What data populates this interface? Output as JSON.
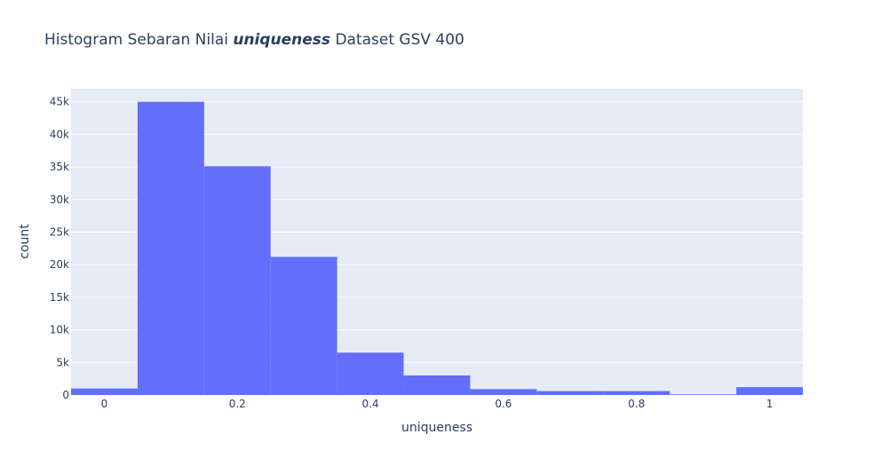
{
  "chart_data": {
    "type": "bar",
    "title": {
      "prefix": "Histogram Sebaran Nilai ",
      "emphasis": "uniqueness",
      "suffix": " Dataset GSV 400"
    },
    "xlabel": "uniqueness",
    "ylabel": "count",
    "xlim": [
      -0.05,
      1.05
    ],
    "ylim": [
      0,
      47000
    ],
    "grid": true,
    "bin_width": 0.1,
    "bins": [
      {
        "x0": -0.05,
        "x1": 0.05,
        "count": 1000
      },
      {
        "x0": 0.05,
        "x1": 0.15,
        "count": 45000
      },
      {
        "x0": 0.15,
        "x1": 0.25,
        "count": 35100
      },
      {
        "x0": 0.25,
        "x1": 0.35,
        "count": 21200
      },
      {
        "x0": 0.35,
        "x1": 0.45,
        "count": 6500
      },
      {
        "x0": 0.45,
        "x1": 0.55,
        "count": 3000
      },
      {
        "x0": 0.55,
        "x1": 0.65,
        "count": 900
      },
      {
        "x0": 0.65,
        "x1": 0.75,
        "count": 600
      },
      {
        "x0": 0.75,
        "x1": 0.85,
        "count": 600
      },
      {
        "x0": 0.85,
        "x1": 0.95,
        "count": 100
      },
      {
        "x0": 0.95,
        "x1": 1.05,
        "count": 1200
      }
    ],
    "x_ticks": [
      {
        "value": 0,
        "label": "0"
      },
      {
        "value": 0.2,
        "label": "0.2"
      },
      {
        "value": 0.4,
        "label": "0.4"
      },
      {
        "value": 0.6,
        "label": "0.6"
      },
      {
        "value": 0.8,
        "label": "0.8"
      },
      {
        "value": 1,
        "label": "1"
      }
    ],
    "y_ticks": [
      {
        "value": 0,
        "label": "0"
      },
      {
        "value": 5000,
        "label": "5k"
      },
      {
        "value": 10000,
        "label": "10k"
      },
      {
        "value": 15000,
        "label": "15k"
      },
      {
        "value": 20000,
        "label": "20k"
      },
      {
        "value": 25000,
        "label": "25k"
      },
      {
        "value": 30000,
        "label": "30k"
      },
      {
        "value": 35000,
        "label": "35k"
      },
      {
        "value": 40000,
        "label": "40k"
      },
      {
        "value": 45000,
        "label": "45k"
      }
    ],
    "colors": {
      "bar": "#636efa",
      "plot_bg": "#e5ecf6",
      "grid": "#ffffff",
      "text": "#2a3f5f"
    }
  }
}
